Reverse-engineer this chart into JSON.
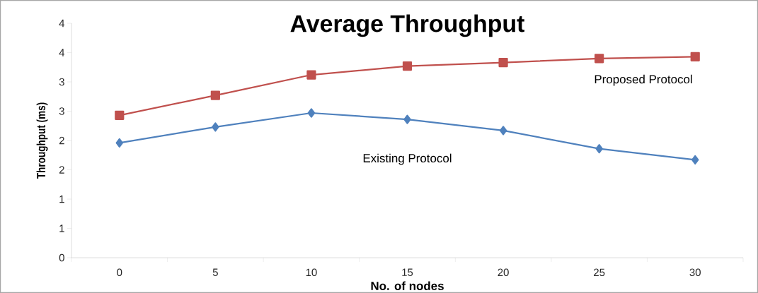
{
  "chart_data": {
    "type": "line",
    "title": "Average Throughput",
    "xlabel": "No. of nodes",
    "ylabel": "Throughput (ms)",
    "categories": [
      "0",
      "5",
      "10",
      "15",
      "20",
      "25",
      "30"
    ],
    "series": [
      {
        "name": "Proposed Protocol",
        "color": "#c0504d",
        "marker": "square",
        "values": [
          2.43,
          2.77,
          3.12,
          3.27,
          3.33,
          3.4,
          3.43
        ]
      },
      {
        "name": "Existing Protocol",
        "color": "#4f81bd",
        "marker": "diamond",
        "values": [
          1.96,
          2.23,
          2.47,
          2.36,
          2.17,
          1.86,
          1.67
        ]
      }
    ],
    "ylim": [
      0,
      4
    ],
    "yticks": [
      0,
      {
        "value": 0.5,
        "label": "1"
      },
      1,
      {
        "value": 1.5,
        "label": "2"
      },
      2,
      {
        "value": 2.5,
        "label": "3"
      },
      3,
      {
        "value": 3.5,
        "label": "4"
      },
      4
    ],
    "legend": false,
    "grid": false
  }
}
